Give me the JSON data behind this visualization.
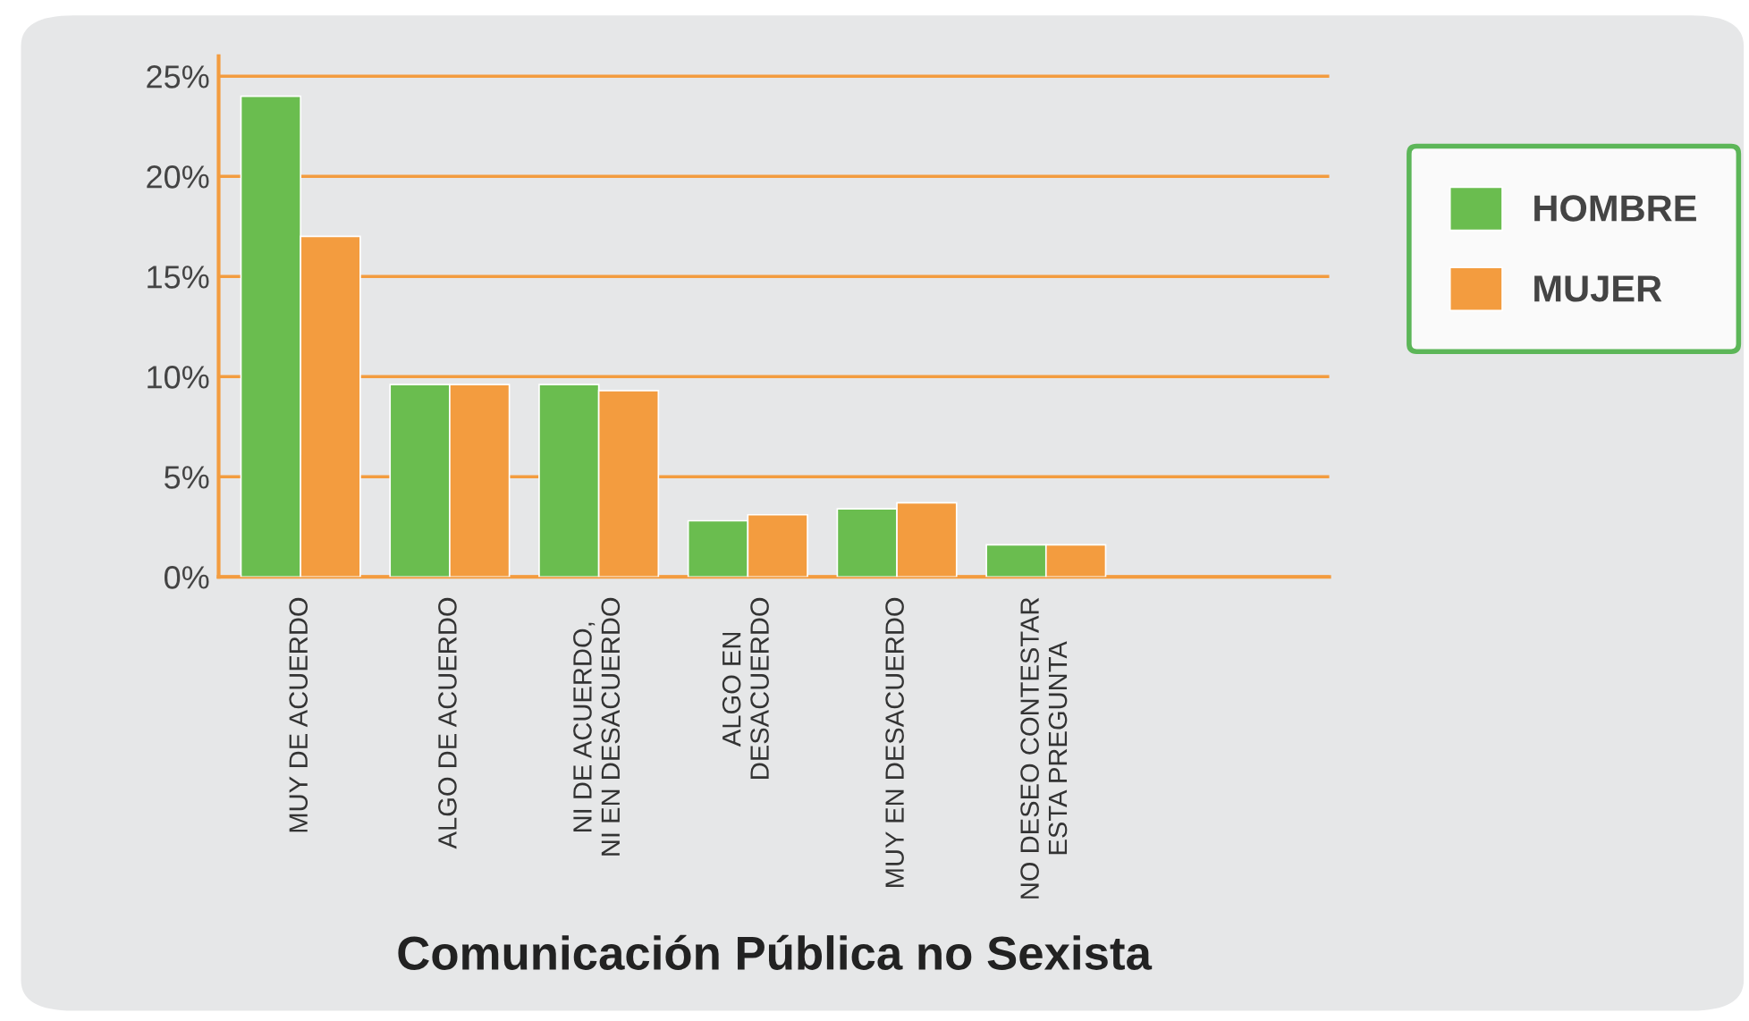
{
  "chart_data": {
    "type": "bar",
    "xlabel": "Comunicación Pública no Sexista",
    "categories": [
      "MUY DE ACUERDO",
      "ALGO DE ACUERDO",
      "NI DE ACUERDO,\nNI EN DESACUERDO",
      "ALGO EN\nDESACUERDO",
      "MUY EN DESACUERDO",
      "NO DESEO CONTESTAR\nESTA PREGUNTA"
    ],
    "series": [
      {
        "name": "HOMBRE",
        "color": "#6abd4f",
        "values": [
          24.0,
          9.6,
          9.6,
          2.8,
          3.4,
          1.6
        ]
      },
      {
        "name": "MUJER",
        "color": "#f39c3f",
        "values": [
          17.0,
          9.6,
          9.3,
          3.1,
          3.7,
          1.6
        ]
      }
    ],
    "ylim": [
      0,
      26
    ],
    "yticks": [
      {
        "value": 0,
        "label": "0%"
      },
      {
        "value": 5,
        "label": "5%"
      },
      {
        "value": 10,
        "label": "10%"
      },
      {
        "value": 15,
        "label": "15%"
      },
      {
        "value": 20,
        "label": "20%"
      },
      {
        "value": 25,
        "label": "25%"
      }
    ],
    "grid": "y",
    "legend": "top right"
  }
}
